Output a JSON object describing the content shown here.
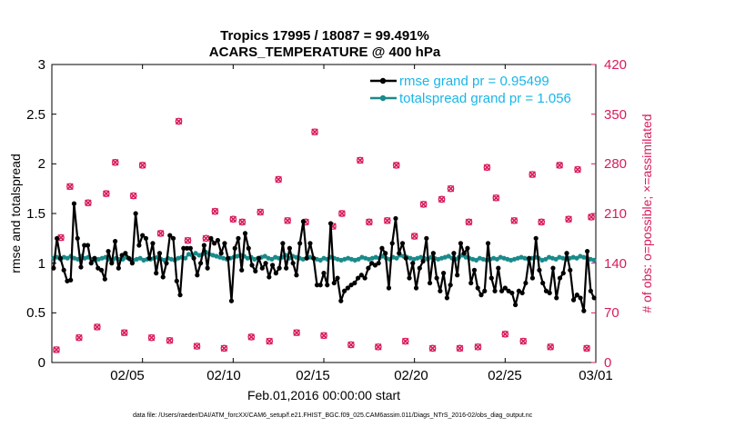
{
  "colors": {
    "rmse": "#000000",
    "spread": "#1a8a8a",
    "obs": "#d81b5a",
    "legend_text": "#19b6e8",
    "axis": "#000000"
  },
  "chart_data": {
    "type": "line",
    "title": "Tropics 17995 / 18087 = 99.491%",
    "subtitle": "ACARS_TEMPERATURE @ 400 hPa",
    "xlabel": "Feb.01,2016 00:00:00 start",
    "ylabel_left": "rmse and totalspread",
    "ylabel_right": "# of obs: o=possible; ×=assimilated",
    "xlim": [
      1,
      61
    ],
    "ylim_left": [
      0,
      3
    ],
    "ylim_right": [
      0,
      420
    ],
    "x_tick_values": [
      11,
      21,
      31,
      41,
      51,
      61
    ],
    "x_tick_labels": [
      "02/05",
      "02/10",
      "02/15",
      "02/20",
      "02/25",
      "03/01"
    ],
    "y_left_ticks": [
      "0",
      "0.5",
      "1",
      "1.5",
      "2",
      "2.5",
      "3"
    ],
    "y_right_ticks": [
      "0",
      "70",
      "140",
      "210",
      "280",
      "350",
      "420"
    ],
    "legend": [
      "rmse grand pr = 0.95499",
      "totalspread grand pr = 1.056"
    ],
    "footnote": "data file: /Users/raeder/DAI/ATM_forcXX/CAM6_setup/f.e21.FHIST_BGC.f09_025.CAM6assim.011/Diags_NTrS_2016-02/obs_diag_output.nc",
    "series": [
      {
        "name": "rmse",
        "values": [
          0.95,
          1.25,
          1.05,
          0.93,
          0.82,
          0.83,
          1.6,
          1.25,
          0.96,
          1.18,
          1.18,
          1.0,
          1.05,
          0.95,
          0.93,
          0.84,
          1.12,
          1.0,
          1.22,
          0.95,
          1.08,
          1.1,
          1.05,
          1.0,
          1.5,
          1.18,
          1.28,
          1.25,
          1.05,
          1.2,
          0.9,
          1.1,
          0.86,
          1.0,
          1.28,
          1.25,
          0.82,
          0.68,
          1.15,
          1.15,
          1.15,
          1.05,
          0.88,
          1.0,
          1.18,
          0.95,
          1.25,
          1.2,
          1.23,
          1.1,
          1.2,
          1.05,
          0.62,
          1.15,
          1.25,
          0.93,
          1.3,
          1.15,
          0.98,
          0.92,
          1.05,
          0.95,
          1.0,
          0.86,
          0.98,
          0.9,
          0.95,
          1.2,
          0.95,
          1.15,
          1.0,
          0.88,
          1.2,
          1.42,
          1.05,
          1.2,
          1.05,
          0.78,
          0.78,
          0.9,
          0.78,
          1.4,
          0.8,
          0.85,
          0.62,
          0.72,
          0.75,
          0.78,
          0.8,
          0.85,
          0.88,
          0.85,
          0.95,
          1.0,
          0.98,
          1.0,
          1.15,
          1.1,
          0.75,
          1.2,
          1.45,
          1.1,
          1.2,
          1.05,
          0.85,
          1.0,
          0.75,
          0.95,
          1.02,
          1.25,
          0.8,
          1.1,
          0.85,
          0.72,
          0.9,
          0.65,
          0.78,
          1.1,
          0.88,
          1.2,
          1.1,
          1.15,
          0.8,
          0.93,
          0.75,
          0.68,
          0.72,
          1.2,
          0.85,
          0.72,
          0.95,
          0.72,
          0.75,
          0.72,
          0.7,
          0.58,
          0.72,
          0.7,
          0.8,
          1.05,
          0.85,
          1.25,
          0.93,
          0.8,
          0.72,
          0.7,
          0.95,
          0.65,
          0.85,
          0.9,
          1.1,
          0.93,
          0.63,
          0.68,
          0.65,
          0.52,
          1.12,
          0.72,
          0.65
        ]
      },
      {
        "name": "totalspread",
        "values": [
          1.05,
          1.06,
          1.04,
          1.06,
          1.05,
          1.07,
          1.05,
          1.04,
          1.07,
          1.05,
          1.06,
          1.04,
          1.03,
          1.04,
          1.05,
          1.06,
          1.04,
          1.03,
          1.05,
          1.04,
          1.04,
          1.06,
          1.04,
          1.03,
          1.04,
          1.05,
          1.03,
          1.04,
          1.04,
          1.05,
          1.06,
          1.04,
          1.03,
          1.05,
          1.04,
          1.03,
          1.05,
          1.06,
          1.05,
          1.09,
          1.08,
          1.1,
          1.08,
          1.09,
          1.11,
          1.09,
          1.08,
          1.07,
          1.06,
          1.05,
          1.04,
          1.05,
          1.06,
          1.07,
          1.08,
          1.07,
          1.05,
          1.06,
          1.04,
          1.05,
          1.06,
          1.07,
          1.05,
          1.04,
          1.06,
          1.05,
          1.06,
          1.08,
          1.05,
          1.07,
          1.06,
          1.05,
          1.04,
          1.05,
          1.06,
          1.05,
          1.04,
          1.03,
          1.05,
          1.04,
          1.06,
          1.05,
          1.04,
          1.03,
          1.04,
          1.05,
          1.04,
          1.03,
          1.04,
          1.06,
          1.05,
          1.04,
          1.05,
          1.06,
          1.05,
          1.07,
          1.05,
          1.04,
          1.06,
          1.05,
          1.08,
          1.07,
          1.06,
          1.05,
          1.04,
          1.05,
          1.06,
          1.05,
          1.04,
          1.06,
          1.05,
          1.04,
          1.05,
          1.06,
          1.07,
          1.05,
          1.04,
          1.06,
          1.08,
          1.06,
          1.05,
          1.04,
          1.03,
          1.05,
          1.04,
          1.03,
          1.04,
          1.05,
          1.04,
          1.06,
          1.05,
          1.04,
          1.03,
          1.04,
          1.05,
          1.06,
          1.05,
          1.04,
          1.05,
          1.06,
          1.05,
          1.03,
          1.04,
          1.06,
          1.05,
          1.04,
          1.06,
          1.05,
          1.04,
          1.05,
          1.06,
          1.05,
          1.07,
          1.06,
          1.05,
          1.04,
          1.03
        ]
      },
      {
        "name": "obs_possible_assimilated",
        "x": [
          1.5,
          2,
          3,
          4,
          5,
          6,
          7,
          8,
          9,
          10,
          11,
          12,
          13,
          14,
          15,
          16,
          17,
          18,
          19,
          20,
          21,
          22,
          23,
          24,
          25,
          26,
          27,
          28,
          29,
          30,
          31,
          32,
          33,
          34,
          35,
          36,
          37,
          38,
          39,
          40,
          41,
          42,
          43,
          44,
          45,
          46,
          47,
          48,
          49,
          50,
          51,
          52,
          53,
          54,
          55,
          56,
          57,
          58,
          59,
          60,
          60.5
        ],
        "values": [
          18,
          176,
          248,
          35,
          225,
          50,
          238,
          282,
          42,
          235,
          278,
          35,
          182,
          31,
          340,
          172,
          23,
          175,
          213,
          20,
          202,
          198,
          36,
          212,
          30,
          258,
          200,
          42,
          198,
          325,
          38,
          192,
          210,
          25,
          285,
          198,
          22,
          200,
          278,
          30,
          178,
          223,
          20,
          230,
          245,
          20,
          198,
          22,
          275,
          232,
          40,
          200,
          30,
          265,
          198,
          22,
          278,
          202,
          272,
          20,
          205
        ]
      }
    ]
  }
}
